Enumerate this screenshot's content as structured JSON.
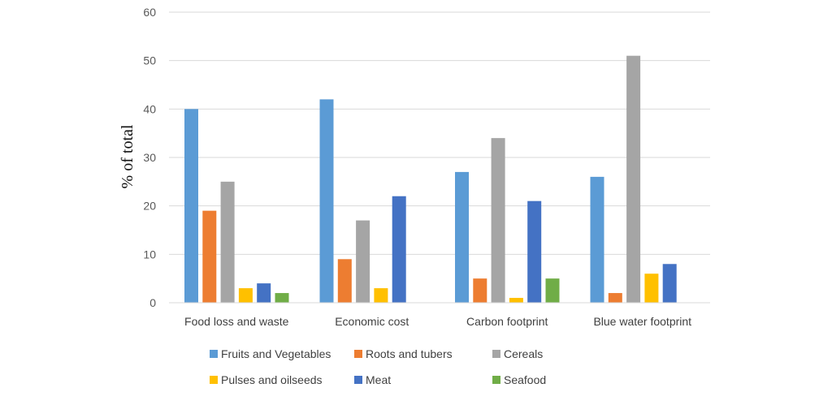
{
  "chart_data": {
    "type": "bar",
    "title": "",
    "xlabel": "",
    "ylabel": "% of total",
    "ylim": [
      0,
      60
    ],
    "yticks": [
      0,
      10,
      20,
      30,
      40,
      50,
      60
    ],
    "grid": true,
    "legend_position": "bottom",
    "categories": [
      "Food loss and waste",
      "Economic cost",
      "Carbon footprint",
      "Blue water footprint"
    ],
    "series": [
      {
        "name": "Fruits and Vegetables",
        "color": "#5B9BD5",
        "values": [
          40,
          42,
          27,
          26
        ]
      },
      {
        "name": "Roots and tubers",
        "color": "#ED7D31",
        "values": [
          19,
          9,
          5,
          2
        ]
      },
      {
        "name": "Cereals",
        "color": "#A5A5A5",
        "values": [
          25,
          17,
          34,
          51
        ]
      },
      {
        "name": "Pulses and oilseeds",
        "color": "#FFC000",
        "values": [
          3,
          3,
          1,
          6
        ]
      },
      {
        "name": "Meat",
        "color": "#4472C4",
        "values": [
          4,
          22,
          21,
          8
        ]
      },
      {
        "name": "Seafood",
        "color": "#70AD47",
        "values": [
          2,
          0,
          5,
          0
        ]
      }
    ]
  }
}
